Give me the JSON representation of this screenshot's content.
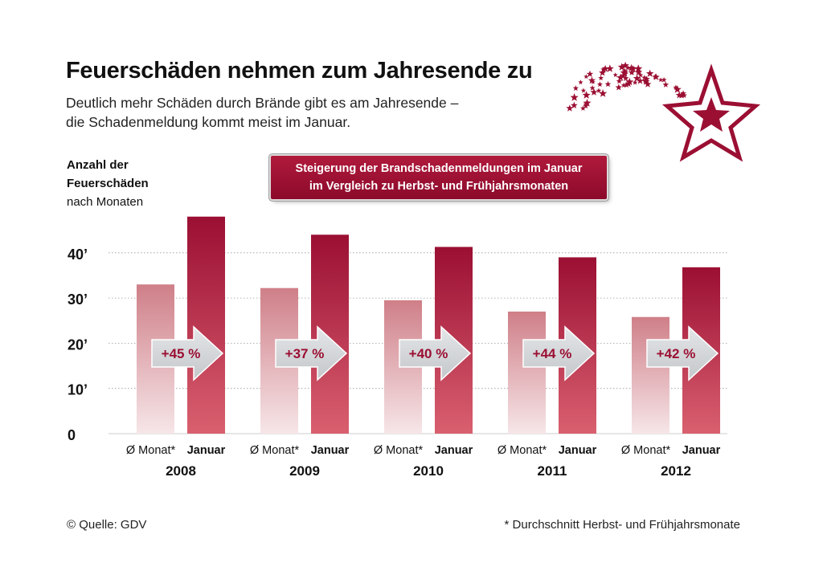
{
  "header": {
    "title": "Feuerschäden nehmen zum Jahresende zu",
    "subtitle_line1": "Deutlich mehr Schäden durch Brände gibt es am Jahresende –",
    "subtitle_line2": "die Schadenmeldung kommt meist im Januar."
  },
  "yaxis_label": {
    "line1": "Anzahl der",
    "line2": "Feuerschäden",
    "line3": "nach Monaten"
  },
  "callout": {
    "line1": "Steigerung der Brandschadenmeldungen im Januar",
    "line2": "im Vergleich zu Herbst- und Frühjahrsmonaten"
  },
  "footer": {
    "source": "© Quelle: GDV",
    "footnote": "* Durchschnitt Herbst- und Frühjahrsmonate"
  },
  "colors": {
    "accent": "#9b0f33",
    "accent_light": "#cf7f88",
    "arrow": "#d0d3d6",
    "arrow_text": "#9b0f33",
    "gridline": "#999999"
  },
  "chart_data": {
    "type": "bar",
    "categories": [
      "2008",
      "2009",
      "2010",
      "2011",
      "2012"
    ],
    "bar_labels": [
      "Ø Monat*",
      "Januar"
    ],
    "series": [
      {
        "name": "Ø Monat*",
        "values": [
          33,
          32.2,
          29.5,
          27,
          25.8
        ]
      },
      {
        "name": "Januar",
        "values": [
          48,
          44,
          41.3,
          39,
          36.8
        ]
      }
    ],
    "increase_labels": [
      "+45 %",
      "+37 %",
      "+40 %",
      "+44 %",
      "+42 %"
    ],
    "yticks": [
      0,
      10,
      20,
      30,
      40
    ],
    "ytick_labels": [
      "0",
      "10’",
      "20’",
      "30’",
      "40’"
    ],
    "ylim": [
      0,
      50
    ],
    "grid": "dotted horizontal"
  }
}
